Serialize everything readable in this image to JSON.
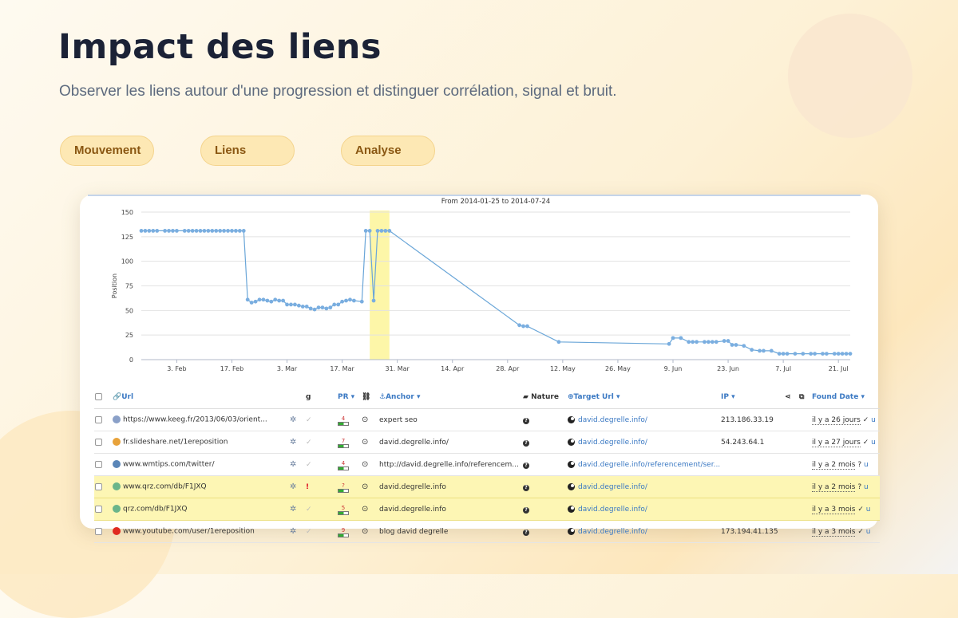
{
  "page": {
    "title": "Impact des liens",
    "subtitle": "Observer les liens autour d'une progression et distinguer corrélation, signal et bruit.",
    "pills": [
      "Mouvement",
      "Liens",
      "Analyse"
    ]
  },
  "colors": {
    "accent_pill": "#fde8b4",
    "pill_text": "#8a5712",
    "series_line": "#6aa6d8",
    "highlight": "#fdf6a8",
    "link": "#3b79c3"
  },
  "chart_data": {
    "type": "line",
    "title": "From 2014-01-25 to 2014-07-24",
    "xlabel": "",
    "ylabel": "Position",
    "ylim": [
      0,
      150
    ],
    "y_ticks": [
      "0",
      "25",
      "50",
      "75",
      "100",
      "125",
      "150"
    ],
    "x_ticks": [
      "3. Feb",
      "17. Feb",
      "3. Mar",
      "17. Mar",
      "31. Mar",
      "14. Apr",
      "28. Apr",
      "12. May",
      "26. May",
      "9. Jun",
      "23. Jun",
      "7. Jul",
      "21. Jul"
    ],
    "x_start": "2014-01-25",
    "highlight_band_dates": [
      "2014-03-24",
      "2014-03-29"
    ],
    "grid": true,
    "series": [
      {
        "name": "",
        "points": [
          [
            "2014-01-25",
            131
          ],
          [
            "2014-01-26",
            131
          ],
          [
            "2014-01-27",
            131
          ],
          [
            "2014-01-28",
            131
          ],
          [
            "2014-01-29",
            131
          ],
          [
            "2014-01-31",
            131
          ],
          [
            "2014-02-01",
            131
          ],
          [
            "2014-02-02",
            131
          ],
          [
            "2014-02-03",
            131
          ],
          [
            "2014-02-05",
            131
          ],
          [
            "2014-02-06",
            131
          ],
          [
            "2014-02-07",
            131
          ],
          [
            "2014-02-08",
            131
          ],
          [
            "2014-02-09",
            131
          ],
          [
            "2014-02-10",
            131
          ],
          [
            "2014-02-11",
            131
          ],
          [
            "2014-02-12",
            131
          ],
          [
            "2014-02-13",
            131
          ],
          [
            "2014-02-14",
            131
          ],
          [
            "2014-02-15",
            131
          ],
          [
            "2014-02-16",
            131
          ],
          [
            "2014-02-17",
            131
          ],
          [
            "2014-02-18",
            131
          ],
          [
            "2014-02-19",
            131
          ],
          [
            "2014-02-20",
            131
          ],
          [
            "2014-02-21",
            61
          ],
          [
            "2014-02-22",
            58
          ],
          [
            "2014-02-23",
            59
          ],
          [
            "2014-02-24",
            61
          ],
          [
            "2014-02-25",
            61
          ],
          [
            "2014-02-26",
            60
          ],
          [
            "2014-02-27",
            59
          ],
          [
            "2014-02-28",
            61
          ],
          [
            "2014-03-01",
            60
          ],
          [
            "2014-03-02",
            60
          ],
          [
            "2014-03-03",
            56
          ],
          [
            "2014-03-04",
            56
          ],
          [
            "2014-03-05",
            56
          ],
          [
            "2014-03-06",
            55
          ],
          [
            "2014-03-07",
            54
          ],
          [
            "2014-03-08",
            54
          ],
          [
            "2014-03-09",
            52
          ],
          [
            "2014-03-10",
            51
          ],
          [
            "2014-03-11",
            53
          ],
          [
            "2014-03-12",
            53
          ],
          [
            "2014-03-13",
            52
          ],
          [
            "2014-03-14",
            53
          ],
          [
            "2014-03-15",
            56
          ],
          [
            "2014-03-16",
            56
          ],
          [
            "2014-03-17",
            59
          ],
          [
            "2014-03-18",
            60
          ],
          [
            "2014-03-19",
            61
          ],
          [
            "2014-03-20",
            60
          ],
          [
            "2014-03-22",
            59
          ],
          [
            "2014-03-23",
            131
          ],
          [
            "2014-03-24",
            131
          ],
          [
            "2014-03-25",
            60
          ],
          [
            "2014-03-26",
            131
          ],
          [
            "2014-03-27",
            131
          ],
          [
            "2014-03-28",
            131
          ],
          [
            "2014-03-29",
            131
          ],
          [
            "2014-05-01",
            35
          ],
          [
            "2014-05-02",
            34
          ],
          [
            "2014-05-03",
            34
          ],
          [
            "2014-05-11",
            18
          ],
          [
            "2014-06-08",
            16
          ],
          [
            "2014-06-09",
            22
          ],
          [
            "2014-06-11",
            22
          ],
          [
            "2014-06-13",
            18
          ],
          [
            "2014-06-14",
            18
          ],
          [
            "2014-06-15",
            18
          ],
          [
            "2014-06-17",
            18
          ],
          [
            "2014-06-18",
            18
          ],
          [
            "2014-06-19",
            18
          ],
          [
            "2014-06-20",
            18
          ],
          [
            "2014-06-22",
            19
          ],
          [
            "2014-06-23",
            19
          ],
          [
            "2014-06-24",
            15
          ],
          [
            "2014-06-25",
            15
          ],
          [
            "2014-06-27",
            14
          ],
          [
            "2014-06-29",
            10
          ],
          [
            "2014-07-01",
            9
          ],
          [
            "2014-07-02",
            9
          ],
          [
            "2014-07-04",
            9
          ],
          [
            "2014-07-06",
            6
          ],
          [
            "2014-07-07",
            6
          ],
          [
            "2014-07-08",
            6
          ],
          [
            "2014-07-10",
            6
          ],
          [
            "2014-07-12",
            6
          ],
          [
            "2014-07-14",
            6
          ],
          [
            "2014-07-15",
            6
          ],
          [
            "2014-07-17",
            6
          ],
          [
            "2014-07-18",
            6
          ],
          [
            "2014-07-20",
            6
          ],
          [
            "2014-07-21",
            6
          ],
          [
            "2014-07-22",
            6
          ],
          [
            "2014-07-23",
            6
          ],
          [
            "2014-07-24",
            6
          ]
        ]
      }
    ]
  },
  "table": {
    "headers": {
      "url": "Url",
      "g": "g",
      "pr": "PR",
      "anchor": "Anchor",
      "nature": "Nature",
      "target": "Target Url",
      "ip": "IP",
      "found": "Found Date"
    },
    "rows": [
      {
        "favicon": "globe-icon",
        "fav_color": "#8aa0c8",
        "url": "https://www.keeg.fr/2013/06/03/orient...",
        "alert": "",
        "pr": "4",
        "anchor": "expert seo",
        "target": "david.degrelle.info/",
        "ip": "213.186.33.19",
        "found": "il y a 26 jours",
        "mark": "✓",
        "u": "u",
        "highlight": false
      },
      {
        "favicon": "slideshare-icon",
        "fav_color": "#e8a23a",
        "url": "fr.slideshare.net/1ereposition",
        "alert": "",
        "pr": "7",
        "anchor": "david.degrelle.info/",
        "target": "david.degrelle.info/",
        "ip": "54.243.64.1",
        "found": "il y a 27 jours",
        "mark": "✓",
        "u": "u",
        "highlight": false
      },
      {
        "favicon": "wmtips-icon",
        "fav_color": "#5a86b8",
        "url": "www.wmtips.com/twitter/",
        "alert": "",
        "pr": "4",
        "anchor": "http://david.degrelle.info/referencem...",
        "target": "david.degrelle.info/referencement/ser...",
        "ip": "",
        "found": "il y a 2 mois",
        "mark": "?",
        "u": "u",
        "highlight": false
      },
      {
        "favicon": "qrz-icon",
        "fav_color": "#6ab58a",
        "url": "www.qrz.com/db/F1JXQ",
        "alert": "!",
        "pr": "?",
        "anchor": "david.degrelle.info",
        "target": "david.degrelle.info/",
        "ip": "",
        "found": "il y a 2 mois",
        "mark": "?",
        "u": "u",
        "highlight": true
      },
      {
        "favicon": "qrz-icon",
        "fav_color": "#6ab58a",
        "url": "qrz.com/db/F1JXQ",
        "alert": "",
        "pr": "5",
        "anchor": "david.degrelle.info",
        "target": "david.degrelle.info/",
        "ip": "",
        "found": "il y a 3 mois",
        "mark": "✓",
        "u": "u",
        "highlight": true
      },
      {
        "favicon": "youtube-icon",
        "fav_color": "#e02a20",
        "url": "www.youtube.com/user/1ereposition",
        "alert": "",
        "pr": "9",
        "anchor": "blog david degrelle",
        "target": "david.degrelle.info/",
        "ip": "173.194.41.135",
        "found": "il y a 3 mois",
        "mark": "✓",
        "u": "u",
        "highlight": false
      }
    ]
  }
}
